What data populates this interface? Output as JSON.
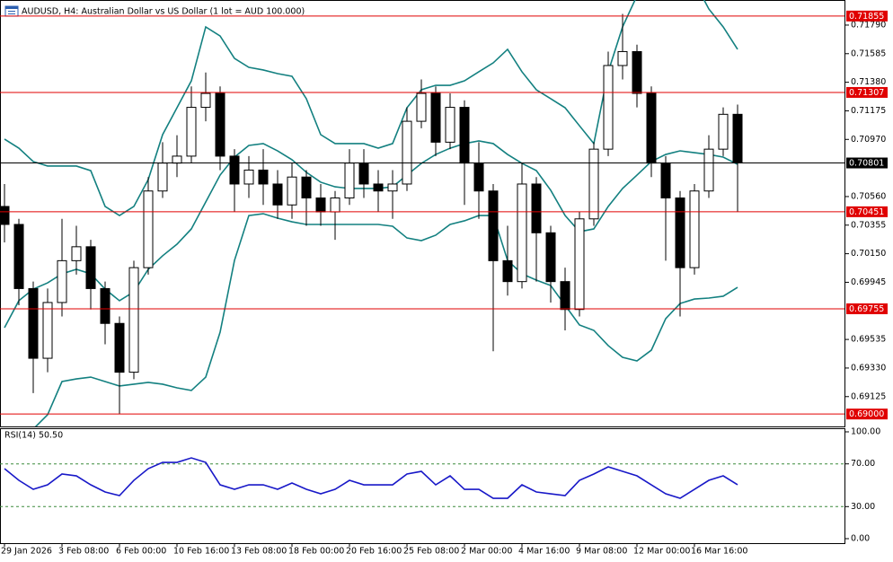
{
  "chart_data": [
    {
      "type": "candlestick",
      "title": "AUDUSD, H4:  Australian Dollar vs US Dollar (1 lot = AUD 100.000)",
      "categories": [
        "29 Jan 2026",
        null,
        null,
        null,
        "3 Feb 08:00",
        null,
        null,
        null,
        "6 Feb 00:00",
        null,
        null,
        null,
        "10 Feb 16:00",
        null,
        null,
        null,
        "13 Feb 08:00",
        null,
        null,
        null,
        "18 Feb 00:00",
        null,
        null,
        null,
        "20 Feb 16:00",
        null,
        null,
        null,
        "25 Feb 08:00",
        null,
        null,
        null,
        "2 Mar 00:00",
        null,
        null,
        null,
        "4 Mar 16:00",
        null,
        null,
        null,
        "9 Mar 08:00",
        null,
        null,
        null,
        "12 Mar 00:00",
        null,
        null,
        null,
        "16 Mar 16:00",
        null,
        null,
        null
      ],
      "open": [
        0.70489,
        0.7036,
        0.699,
        0.694,
        0.698,
        0.701,
        0.702,
        0.699,
        0.6965,
        0.693,
        0.7005,
        0.706,
        0.708,
        0.7085,
        0.712,
        0.713,
        0.7085,
        0.7065,
        0.7075,
        0.7065,
        0.705,
        0.707,
        0.7055,
        0.7045,
        0.7055,
        0.708,
        0.7065,
        0.706,
        0.7065,
        0.711,
        0.713,
        0.7095,
        0.712,
        0.708,
        0.706,
        0.701,
        0.6995,
        0.7065,
        0.703,
        0.6995,
        0.6975,
        0.704,
        0.709,
        0.715,
        0.716,
        0.713,
        0.708,
        0.7055,
        0.7005,
        0.706,
        0.709,
        0.7115
      ],
      "high": [
        0.7065,
        0.704,
        0.6995,
        0.699,
        0.704,
        0.7035,
        0.7025,
        0.6995,
        0.697,
        0.701,
        0.707,
        0.7095,
        0.71,
        0.7135,
        0.7145,
        0.7135,
        0.709,
        0.7085,
        0.709,
        0.7075,
        0.708,
        0.7075,
        0.7065,
        0.706,
        0.709,
        0.709,
        0.7075,
        0.7075,
        0.712,
        0.714,
        0.7135,
        0.713,
        0.7125,
        0.7095,
        0.7065,
        0.7035,
        0.708,
        0.707,
        0.7035,
        0.7005,
        0.7045,
        0.7095,
        0.716,
        0.7187,
        0.7165,
        0.7135,
        0.7085,
        0.706,
        0.7065,
        0.71,
        0.712,
        0.7122
      ],
      "low": [
        0.70231,
        0.6978,
        0.6915,
        0.693,
        0.697,
        0.7,
        0.6975,
        0.695,
        0.69,
        0.6925,
        0.7,
        0.7055,
        0.707,
        0.708,
        0.711,
        0.7075,
        0.7045,
        0.7055,
        0.705,
        0.704,
        0.704,
        0.7035,
        0.7035,
        0.7025,
        0.705,
        0.7055,
        0.7045,
        0.704,
        0.706,
        0.7105,
        0.7085,
        0.709,
        0.705,
        0.704,
        0.6945,
        0.6985,
        0.699,
        0.6995,
        0.698,
        0.696,
        0.697,
        0.7035,
        0.7085,
        0.714,
        0.712,
        0.707,
        0.701,
        0.697,
        0.7,
        0.7055,
        0.7085,
        0.70451
      ],
      "close": [
        0.7036,
        0.699,
        0.694,
        0.698,
        0.701,
        0.702,
        0.699,
        0.6965,
        0.693,
        0.7005,
        0.706,
        0.708,
        0.7085,
        0.712,
        0.713,
        0.7085,
        0.7065,
        0.7075,
        0.7065,
        0.705,
        0.707,
        0.7055,
        0.7045,
        0.7055,
        0.708,
        0.7065,
        0.706,
        0.7065,
        0.711,
        0.713,
        0.7095,
        0.712,
        0.708,
        0.706,
        0.701,
        0.6995,
        0.7065,
        0.703,
        0.6995,
        0.6975,
        0.704,
        0.709,
        0.715,
        0.716,
        0.713,
        0.708,
        0.7055,
        0.7005,
        0.706,
        0.709,
        0.7115,
        0.70801
      ],
      "up_color": "#ffffff",
      "down_color": "#000000",
      "overlays": [
        {
          "color": "#138080",
          "values": [
            0.70972,
            0.70907,
            0.70811,
            0.70779,
            0.70779,
            0.70779,
            0.70746,
            0.70489,
            0.70424,
            0.70489,
            0.70682,
            0.71004,
            0.71197,
            0.7139,
            0.71777,
            0.71712,
            0.71551,
            0.71487,
            0.71468,
            0.71442,
            0.71423,
            0.71262,
            0.71004,
            0.7094,
            0.7094,
            0.7094,
            0.70907,
            0.7094,
            0.71197,
            0.71326,
            0.71358,
            0.71358,
            0.7139,
            0.71455,
            0.71519,
            0.71616,
            0.71455,
            0.71326,
            0.71262,
            0.71197,
            0.71068,
            0.7094,
            0.71455,
            0.71777,
            0.72,
            0.721,
            0.7215,
            0.7215,
            0.721,
            0.71906,
            0.71777,
            0.71616
          ]
        },
        {
          "color": "#138080",
          "values": [
            0.69619,
            0.69813,
            0.69896,
            0.69941,
            0.70006,
            0.70038,
            0.70006,
            0.69896,
            0.69813,
            0.69877,
            0.70038,
            0.70135,
            0.70218,
            0.70328,
            0.70521,
            0.70714,
            0.70843,
            0.70927,
            0.7094,
            0.70888,
            0.70824,
            0.70734,
            0.70663,
            0.7063,
            0.70618,
            0.70618,
            0.70618,
            0.7063,
            0.70714,
            0.70798,
            0.70862,
            0.70907,
            0.7094,
            0.70959,
            0.7094,
            0.70862,
            0.70798,
            0.70746,
            0.70605,
            0.70424,
            0.70308,
            0.70328,
            0.70489,
            0.70618,
            0.70714,
            0.70811,
            0.70862,
            0.70888,
            0.70875,
            0.70862,
            0.70843,
            0.70791
          ]
        },
        {
          "color": "#138080",
          "values": [
            0.68621,
            0.6875,
            0.68892,
            0.68995,
            0.69233,
            0.69252,
            0.69265,
            0.69233,
            0.69201,
            0.69214,
            0.69227,
            0.69214,
            0.69188,
            0.69169,
            0.69265,
            0.69587,
            0.70102,
            0.70424,
            0.70437,
            0.70405,
            0.70379,
            0.7036,
            0.7036,
            0.7036,
            0.7036,
            0.7036,
            0.7036,
            0.70347,
            0.70263,
            0.70244,
            0.70283,
            0.7036,
            0.70386,
            0.70424,
            0.70424,
            0.70102,
            0.70006,
            0.69961,
            0.69922,
            0.6978,
            0.69639,
            0.696,
            0.69491,
            0.69407,
            0.69381,
            0.69458,
            0.69684,
            0.69793,
            0.69825,
            0.69832,
            0.69845,
            0.69909
          ]
        }
      ],
      "levels": [
        {
          "value": 0.71855,
          "color": "#e00000"
        },
        {
          "value": 0.71307,
          "color": "#e00000"
        },
        {
          "value": 0.70801,
          "color": "#000000"
        },
        {
          "value": 0.70451,
          "color": "#e00000"
        },
        {
          "value": 0.69755,
          "color": "#e00000"
        },
        {
          "value": 0.69,
          "label": "0.69000",
          "color": "#e00000"
        }
      ],
      "ylim": [
        0.68911,
        0.7197
      ],
      "yticks": [
        {
          "value": 0.7179,
          "label": "0.71790"
        },
        0.71585,
        {
          "value": 0.7138,
          "label": "0.71380"
        },
        0.71175,
        {
          "value": 0.7097,
          "label": "0.70970"
        },
        {
          "value": 0.7056,
          "label": "0.70560"
        },
        0.70355,
        {
          "value": 0.7015,
          "label": "0.70150"
        },
        0.69945,
        0.69535,
        {
          "value": 0.6933,
          "label": "0.69330"
        },
        0.69125
      ]
    },
    {
      "type": "line",
      "title": "RSI(14) 50.50",
      "color": "#1818c8",
      "values": [
        65.5,
        54.6,
        46.2,
        50.4,
        60.5,
        58.8,
        50.4,
        43.7,
        40.3,
        54.6,
        65.5,
        71.4,
        71.4,
        75.6,
        71.4,
        50.4,
        46.2,
        50.4,
        50.4,
        46.2,
        52.1,
        46.2,
        42.0,
        46.2,
        54.6,
        50.4,
        50.4,
        50.4,
        60.5,
        63.0,
        50.4,
        58.8,
        46.2,
        46.2,
        37.8,
        37.8,
        50.4,
        43.7,
        42.0,
        40.3,
        54.6,
        60.5,
        67.2,
        63.0,
        58.8,
        50.4,
        42.0,
        37.8,
        46.2,
        54.6,
        58.8,
        50.5
      ],
      "levels": [
        70,
        30
      ],
      "level_color": "#3c8a3c",
      "ylim": [
        0,
        100
      ],
      "yticks": [
        {
          "value": 100,
          "label": "100.00"
        },
        {
          "value": 70,
          "label": "70.00"
        },
        {
          "value": 30,
          "label": "30.00"
        },
        {
          "value": 0,
          "label": "0.00"
        }
      ]
    }
  ]
}
